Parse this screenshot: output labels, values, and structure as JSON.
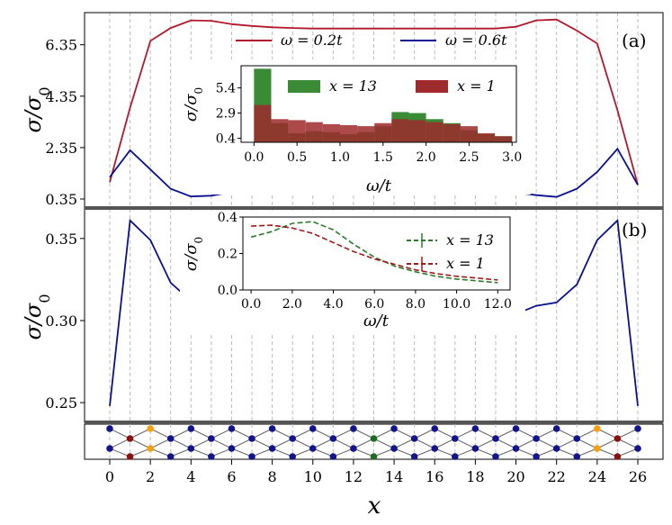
{
  "chart_data": [
    {
      "panel": "(a)",
      "type": "line",
      "xlabel": "x",
      "ylabel": "σ/σ₀",
      "xlim": [
        -1,
        27
      ],
      "ylim": [
        0.0,
        7.6
      ],
      "yticks": [
        "0.35",
        "2.35",
        "4.35",
        "6.35"
      ],
      "ytick_values": [
        0.35,
        2.35,
        4.35,
        6.35
      ],
      "x": [
        0,
        1,
        2,
        3,
        4,
        5,
        6,
        7,
        8,
        9,
        10,
        11,
        12,
        13,
        14,
        15,
        16,
        17,
        18,
        19,
        20,
        21,
        22,
        23,
        24,
        25,
        26
      ],
      "series": [
        {
          "name": "ω = 0.2t",
          "color": "#b2182b",
          "values": [
            1.0,
            3.9,
            6.5,
            7.0,
            7.3,
            7.28,
            7.15,
            7.08,
            7.03,
            7.0,
            6.98,
            6.98,
            6.98,
            6.98,
            6.98,
            6.98,
            6.98,
            6.98,
            6.98,
            6.98,
            7.05,
            7.3,
            7.33,
            6.9,
            6.4,
            3.8,
            0.9
          ]
        },
        {
          "name": "ω = 0.6t",
          "color": "#0a108f",
          "values": [
            1.2,
            2.25,
            1.5,
            0.75,
            0.45,
            0.48,
            0.62,
            0.66,
            0.68,
            0.69,
            0.66,
            0.63,
            0.6,
            0.6,
            0.6,
            0.6,
            0.6,
            0.6,
            0.6,
            0.6,
            0.6,
            0.5,
            0.43,
            0.75,
            1.4,
            2.3,
            0.9
          ]
        }
      ],
      "inset": {
        "type": "bar",
        "xlabel": "ω/t",
        "ylabel": "σ/σ₀",
        "xlim": [
          -0.15,
          3.05
        ],
        "ylim": [
          0,
          7.6
        ],
        "xticks": [
          "0.0",
          "0.5",
          "1.0",
          "1.5",
          "2.0",
          "2.5",
          "3.0"
        ],
        "xtick_values": [
          0.0,
          0.5,
          1.0,
          1.5,
          2.0,
          2.5,
          3.0
        ],
        "yticks": [
          "0.4",
          "2.9",
          "5.4"
        ],
        "ytick_values": [
          0.4,
          2.9,
          5.4
        ],
        "bin_edges": [
          0.0,
          0.2,
          0.4,
          0.6,
          0.8,
          1.0,
          1.2,
          1.4,
          1.6,
          1.8,
          2.0,
          2.2,
          2.4,
          2.6,
          2.8,
          3.0
        ],
        "series": [
          {
            "name": "x = 13",
            "color": "#3a8a36",
            "values": [
              7.3,
              1.9,
              0.9,
              1.1,
              1.0,
              0.8,
              1.0,
              1.6,
              3.0,
              2.9,
              2.3,
              1.9,
              1.2,
              0.8,
              0.6
            ]
          },
          {
            "name": "x = 1",
            "color": "#9e2a2b",
            "values": [
              3.7,
              2.3,
              2.2,
              2.0,
              1.8,
              1.7,
              1.6,
              1.9,
              2.3,
              2.2,
              2.0,
              1.8,
              1.6,
              0.9,
              0.6
            ]
          }
        ]
      }
    },
    {
      "panel": "(b)",
      "type": "line",
      "xlabel": "x",
      "ylabel": "σ/σ₀",
      "xlim": [
        -1,
        27
      ],
      "ylim": [
        0.238,
        0.368
      ],
      "yticks": [
        "0.25",
        "0.30",
        "0.35"
      ],
      "ytick_values": [
        0.25,
        0.3,
        0.35
      ],
      "x": [
        0,
        1,
        2,
        3,
        4,
        5,
        6,
        7,
        8,
        9,
        10,
        11,
        12,
        13,
        14,
        15,
        16,
        17,
        18,
        19,
        20,
        21,
        22,
        23,
        24,
        25,
        26
      ],
      "series": [
        {
          "name": "",
          "color": "#0a108f",
          "values": [
            0.248,
            0.361,
            0.349,
            0.323,
            0.312,
            0.306,
            0.301,
            0.299,
            0.297,
            0.296,
            0.292,
            0.292,
            0.293,
            0.293,
            0.293,
            0.292,
            0.292,
            0.297,
            0.298,
            0.3,
            0.304,
            0.309,
            0.311,
            0.322,
            0.349,
            0.361,
            0.248
          ]
        }
      ],
      "inset": {
        "type": "line",
        "xlabel": "ω/t",
        "ylabel": "σ/σ₀",
        "xlim": [
          -0.4,
          12.6
        ],
        "ylim": [
          0.0,
          0.4
        ],
        "xticks": [
          "0.0",
          "2.0",
          "4.0",
          "6.0",
          "8.0",
          "10.0",
          "12.0"
        ],
        "xtick_values": [
          0,
          2,
          4,
          6,
          8,
          10,
          12
        ],
        "yticks": [
          "0.0",
          "0.2",
          "0.4"
        ],
        "ytick_values": [
          0.0,
          0.2,
          0.4
        ],
        "x": [
          0,
          1,
          2,
          3,
          4,
          5,
          6,
          7,
          8,
          9,
          10,
          11,
          12
        ],
        "series": [
          {
            "name": "x = 13",
            "color": "#2d7a2b",
            "values": [
              0.29,
              0.32,
              0.365,
              0.375,
              0.33,
              0.25,
              0.18,
              0.13,
              0.1,
              0.075,
              0.06,
              0.05,
              0.04
            ]
          },
          {
            "name": "x = 1",
            "color": "#a01a1a",
            "values": [
              0.35,
              0.355,
              0.34,
              0.31,
              0.26,
              0.21,
              0.17,
              0.14,
              0.11,
              0.09,
              0.075,
              0.065,
              0.055
            ]
          }
        ]
      }
    }
  ],
  "xaxis": {
    "label": "x",
    "ticks": [
      "0",
      "2",
      "4",
      "6",
      "8",
      "10",
      "12",
      "14",
      "16",
      "18",
      "20",
      "22",
      "24",
      "26"
    ],
    "tick_values": [
      0,
      2,
      4,
      6,
      8,
      10,
      12,
      14,
      16,
      18,
      20,
      22,
      24,
      26
    ]
  },
  "lattice": {
    "colors": {
      "bulk": "#14148c",
      "edge_red": "#8b1010",
      "edge_orange": "#f5a010",
      "center_green": "#1f6b1f"
    }
  },
  "labels": {
    "a": "(a)",
    "b": "(b)",
    "ylabel": "σ/σ",
    "ylabel_sub": "0",
    "xlabel": "x",
    "inset_xlabel": "ω/t"
  },
  "legend_a": [
    {
      "label": "ω = 0.2t",
      "color": "#b2182b"
    },
    {
      "label": "ω = 0.6t",
      "color": "#0a108f"
    }
  ],
  "legend_ai": [
    {
      "label": "x = 13",
      "color": "#3a8a36"
    },
    {
      "label": "x = 1",
      "color": "#9e2a2b"
    }
  ],
  "legend_bi": [
    {
      "label": "x = 13",
      "color": "#2d7a2b"
    },
    {
      "label": "x = 1",
      "color": "#a01a1a"
    }
  ]
}
